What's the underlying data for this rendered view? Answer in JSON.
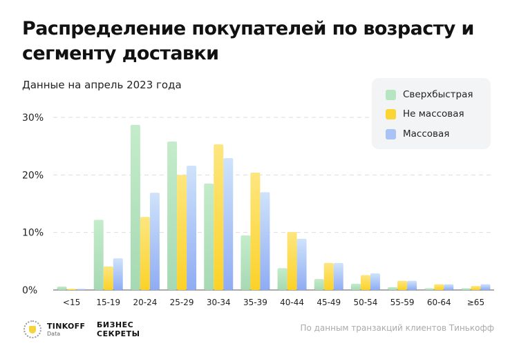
{
  "header": {
    "title": "Распределение покупателей по возрасту и сегменту доставки",
    "subtitle": "Данные на апрель 2023 года"
  },
  "chart_data": {
    "type": "bar",
    "title": "Распределение покупателей по возрасту и сегменту доставки",
    "subtitle": "Данные на апрель 2023 года",
    "xlabel": "",
    "ylabel": "",
    "ylim": [
      0,
      30
    ],
    "yticks": [
      "0%",
      "10%",
      "20%",
      "30%"
    ],
    "grid": true,
    "legend_placement": "top-right",
    "categories": [
      "<15",
      "15-19",
      "20-24",
      "25-29",
      "30-34",
      "35-39",
      "40-44",
      "45-49",
      "50-54",
      "55-59",
      "60-64",
      "≥65"
    ],
    "series": [
      {
        "name": "Сверхбыстрая",
        "color": "#b5e6bf",
        "values": [
          0.6,
          12.2,
          28.7,
          25.8,
          18.5,
          9.5,
          3.8,
          1.9,
          1.1,
          0.5,
          0.3,
          0.3
        ]
      },
      {
        "name": "Не массовая",
        "color": "#fcd535",
        "values": [
          0.2,
          4.1,
          12.7,
          20.0,
          25.3,
          20.4,
          10.1,
          4.7,
          2.6,
          1.6,
          1.0,
          0.7
        ]
      },
      {
        "name": "Массовая",
        "color": "#9db8f5",
        "values": [
          0.2,
          5.5,
          16.9,
          21.6,
          22.9,
          17.0,
          8.9,
          4.7,
          2.9,
          1.6,
          1.0,
          1.0
        ]
      }
    ]
  },
  "footer": {
    "brand1": "TINKOFF",
    "brand1_sub": "Data",
    "brand2_line1": "БИЗНЕС",
    "brand2_line2": "СЕКРЕТЫ",
    "source": "По данным транзакций клиентов Тинькофф"
  }
}
